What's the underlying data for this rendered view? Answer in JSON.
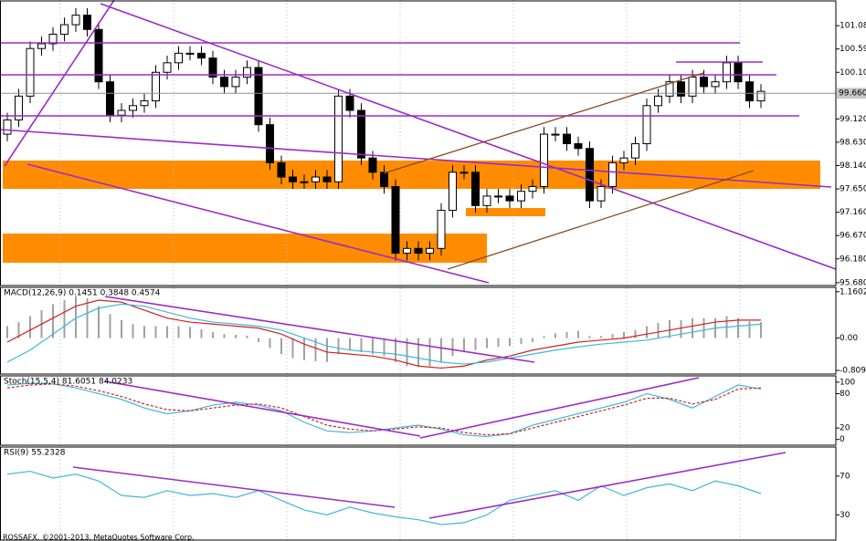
{
  "chart_data": [
    {
      "type": "candlestick",
      "open": [
        98.8,
        99.1,
        99.6,
        100.6,
        100.7,
        100.9,
        101.1,
        101.3,
        101.0,
        99.9,
        99.2,
        99.3,
        99.4,
        99.5,
        100.1,
        100.3,
        100.5,
        100.5,
        100.4,
        100.0,
        99.8,
        100.0,
        100.2,
        99.0,
        98.2,
        97.9,
        97.8,
        97.8,
        97.9,
        97.8,
        99.6,
        99.3,
        98.3,
        98.0,
        97.7,
        96.3,
        96.4,
        96.3,
        96.4,
        97.2,
        98.0,
        98.0,
        97.3,
        97.5,
        97.5,
        97.4,
        97.6,
        97.7,
        98.8,
        98.8,
        98.6,
        98.5,
        97.4,
        97.7,
        98.2,
        98.3,
        98.6,
        99.4,
        99.6,
        99.9,
        99.6,
        100.0,
        99.8,
        99.9,
        100.3,
        99.9,
        99.5
      ],
      "high": [
        99.25,
        99.75,
        100.75,
        100.85,
        101.05,
        101.25,
        101.45,
        101.45,
        101.15,
        100.05,
        99.45,
        99.55,
        99.65,
        100.25,
        100.45,
        100.65,
        100.65,
        100.65,
        100.55,
        100.15,
        100.15,
        100.35,
        100.35,
        99.15,
        98.35,
        98.05,
        97.95,
        98.05,
        98.05,
        99.75,
        99.75,
        99.45,
        98.45,
        98.15,
        97.85,
        96.55,
        96.55,
        96.55,
        97.35,
        98.15,
        98.15,
        98.15,
        97.65,
        97.65,
        97.65,
        97.75,
        97.85,
        98.95,
        98.95,
        98.95,
        98.75,
        98.65,
        97.85,
        98.35,
        98.45,
        98.75,
        99.55,
        99.75,
        100.05,
        100.05,
        100.15,
        100.15,
        100.05,
        100.45,
        100.45,
        100.05,
        99.85
      ],
      "low": [
        98.65,
        98.95,
        99.45,
        100.45,
        100.55,
        100.75,
        100.95,
        100.85,
        99.75,
        99.05,
        99.05,
        99.15,
        99.25,
        99.35,
        99.95,
        100.15,
        100.35,
        100.25,
        99.85,
        99.65,
        99.65,
        99.85,
        98.85,
        98.05,
        97.75,
        97.65,
        97.65,
        97.65,
        97.65,
        97.65,
        99.15,
        98.15,
        97.85,
        97.55,
        96.15,
        96.15,
        96.15,
        96.15,
        96.25,
        97.05,
        97.85,
        97.15,
        97.15,
        97.35,
        97.25,
        97.25,
        97.45,
        97.55,
        98.65,
        98.45,
        98.35,
        97.25,
        97.25,
        97.55,
        98.05,
        98.15,
        98.45,
        99.25,
        99.45,
        99.45,
        99.45,
        99.65,
        99.65,
        99.75,
        99.75,
        99.35,
        99.35
      ],
      "close": [
        99.1,
        99.6,
        100.6,
        100.7,
        100.9,
        101.1,
        101.3,
        101.0,
        99.9,
        99.2,
        99.3,
        99.4,
        99.5,
        100.1,
        100.3,
        100.5,
        100.5,
        100.4,
        100.0,
        99.8,
        100.0,
        100.2,
        99.0,
        98.2,
        97.9,
        97.8,
        97.8,
        97.9,
        97.8,
        99.6,
        99.3,
        98.3,
        98.0,
        97.7,
        96.3,
        96.4,
        96.3,
        96.4,
        97.2,
        98.0,
        98.0,
        97.3,
        97.5,
        97.5,
        97.4,
        97.6,
        97.7,
        98.8,
        98.8,
        98.6,
        98.5,
        97.4,
        97.7,
        98.2,
        98.3,
        98.6,
        99.4,
        99.6,
        99.9,
        99.6,
        100.0,
        99.8,
        99.9,
        100.3,
        99.9,
        99.5,
        99.7
      ],
      "ylim": [
        95.62,
        101.6
      ],
      "yticks": [
        {
          "value": 101.08,
          "label": "101.080"
        },
        {
          "value": 100.59,
          "label": "100.590"
        },
        {
          "value": 100.1,
          "label": "100.100"
        },
        {
          "value": 99.12,
          "label": "99.120"
        },
        {
          "value": 98.63,
          "label": "98.630"
        },
        {
          "value": 98.14,
          "label": "98.140"
        },
        {
          "value": 97.65,
          "label": "97.650"
        },
        {
          "value": 97.16,
          "label": "97.160"
        },
        {
          "value": 96.67,
          "label": "96.670"
        },
        {
          "value": 96.18,
          "label": "96.180"
        },
        {
          "value": 95.68,
          "label": "95.680"
        }
      ],
      "last_price": {
        "value": 99.66,
        "label": "99.660"
      }
    },
    {
      "type": "macd",
      "title": "MACD(12,26,9) 0.1451 0.3848 0.4574",
      "values": [
        0.3,
        0.4,
        0.55,
        0.7,
        0.85,
        0.95,
        1.05,
        1.0,
        0.8,
        0.6,
        0.45,
        0.35,
        0.3,
        0.3,
        0.3,
        0.3,
        0.28,
        0.22,
        0.15,
        0.1,
        0.08,
        0.06,
        -0.1,
        -0.25,
        -0.4,
        -0.5,
        -0.55,
        -0.58,
        -0.6,
        -0.4,
        -0.3,
        -0.35,
        -0.4,
        -0.45,
        -0.6,
        -0.7,
        -0.72,
        -0.7,
        -0.6,
        -0.45,
        -0.35,
        -0.3,
        -0.25,
        -0.22,
        -0.2,
        -0.15,
        -0.1,
        0.05,
        0.12,
        0.15,
        0.18,
        0.05,
        0.05,
        0.1,
        0.15,
        0.2,
        0.3,
        0.38,
        0.45,
        0.45,
        0.5,
        0.5,
        0.5,
        0.55,
        0.5,
        0.42,
        0.4
      ],
      "color": "#a0a0a0",
      "series": [
        {
          "color": "#d02020",
          "values": [
            -0.1,
            0.2,
            0.5,
            0.8,
            0.95,
            0.9,
            0.7,
            0.5,
            0.4,
            0.35,
            0.3,
            0.25,
            0.1,
            -0.15,
            -0.35,
            -0.4,
            -0.45,
            -0.55,
            -0.7,
            -0.75,
            -0.7,
            -0.55,
            -0.45,
            -0.3,
            -0.2,
            -0.1,
            -0.05,
            0.0,
            0.1,
            0.2,
            0.3,
            0.4,
            0.45,
            0.45
          ]
        },
        {
          "color": "#40b8d8",
          "values": [
            -0.6,
            -0.3,
            0.1,
            0.5,
            0.75,
            0.85,
            0.8,
            0.65,
            0.5,
            0.4,
            0.35,
            0.3,
            0.2,
            0.0,
            -0.2,
            -0.3,
            -0.35,
            -0.4,
            -0.5,
            -0.6,
            -0.65,
            -0.6,
            -0.5,
            -0.4,
            -0.3,
            -0.22,
            -0.15,
            -0.1,
            -0.05,
            0.05,
            0.15,
            0.25,
            0.3,
            0.35
          ]
        }
      ],
      "ylim": [
        -0.9,
        1.27
      ],
      "yticks": [
        1.1602,
        {
          "value": 0,
          "label": "0.00"
        },
        -0.8091
      ]
    },
    {
      "type": "line",
      "title": "Stoch(15,5,4) 81.6051 84.0233",
      "series": [
        {
          "color": "#40b8d8",
          "values": [
            95,
            98,
            97,
            90,
            80,
            70,
            55,
            45,
            50,
            60,
            65,
            60,
            50,
            30,
            15,
            12,
            15,
            20,
            25,
            18,
            8,
            5,
            10,
            25,
            35,
            45,
            55,
            65,
            80,
            70,
            55,
            75,
            95,
            88
          ]
        },
        {
          "color": "#d02020",
          "dashed": true,
          "values": [
            90,
            95,
            97,
            93,
            85,
            75,
            62,
            52,
            50,
            55,
            60,
            62,
            55,
            40,
            25,
            18,
            15,
            18,
            22,
            20,
            12,
            8,
            10,
            20,
            30,
            40,
            50,
            60,
            72,
            72,
            62,
            70,
            88,
            90
          ]
        }
      ],
      "ylim": [
        -10,
        111
      ],
      "yticks": [
        100,
        80,
        20,
        0
      ]
    },
    {
      "type": "line",
      "title": "RSI(9) 55.2328",
      "series": [
        {
          "color": "#40b8d8",
          "values": [
            72,
            75,
            68,
            72,
            65,
            50,
            48,
            55,
            50,
            52,
            48,
            55,
            45,
            35,
            30,
            38,
            32,
            28,
            25,
            20,
            22,
            30,
            45,
            50,
            55,
            45,
            60,
            50,
            58,
            62,
            55,
            65,
            60,
            52
          ]
        }
      ],
      "ylim": [
        4,
        100
      ],
      "yticks": [
        70,
        30
      ]
    }
  ],
  "footer": "ROSSAFX, ©2001-2013, MetaQuotes Software Corp."
}
